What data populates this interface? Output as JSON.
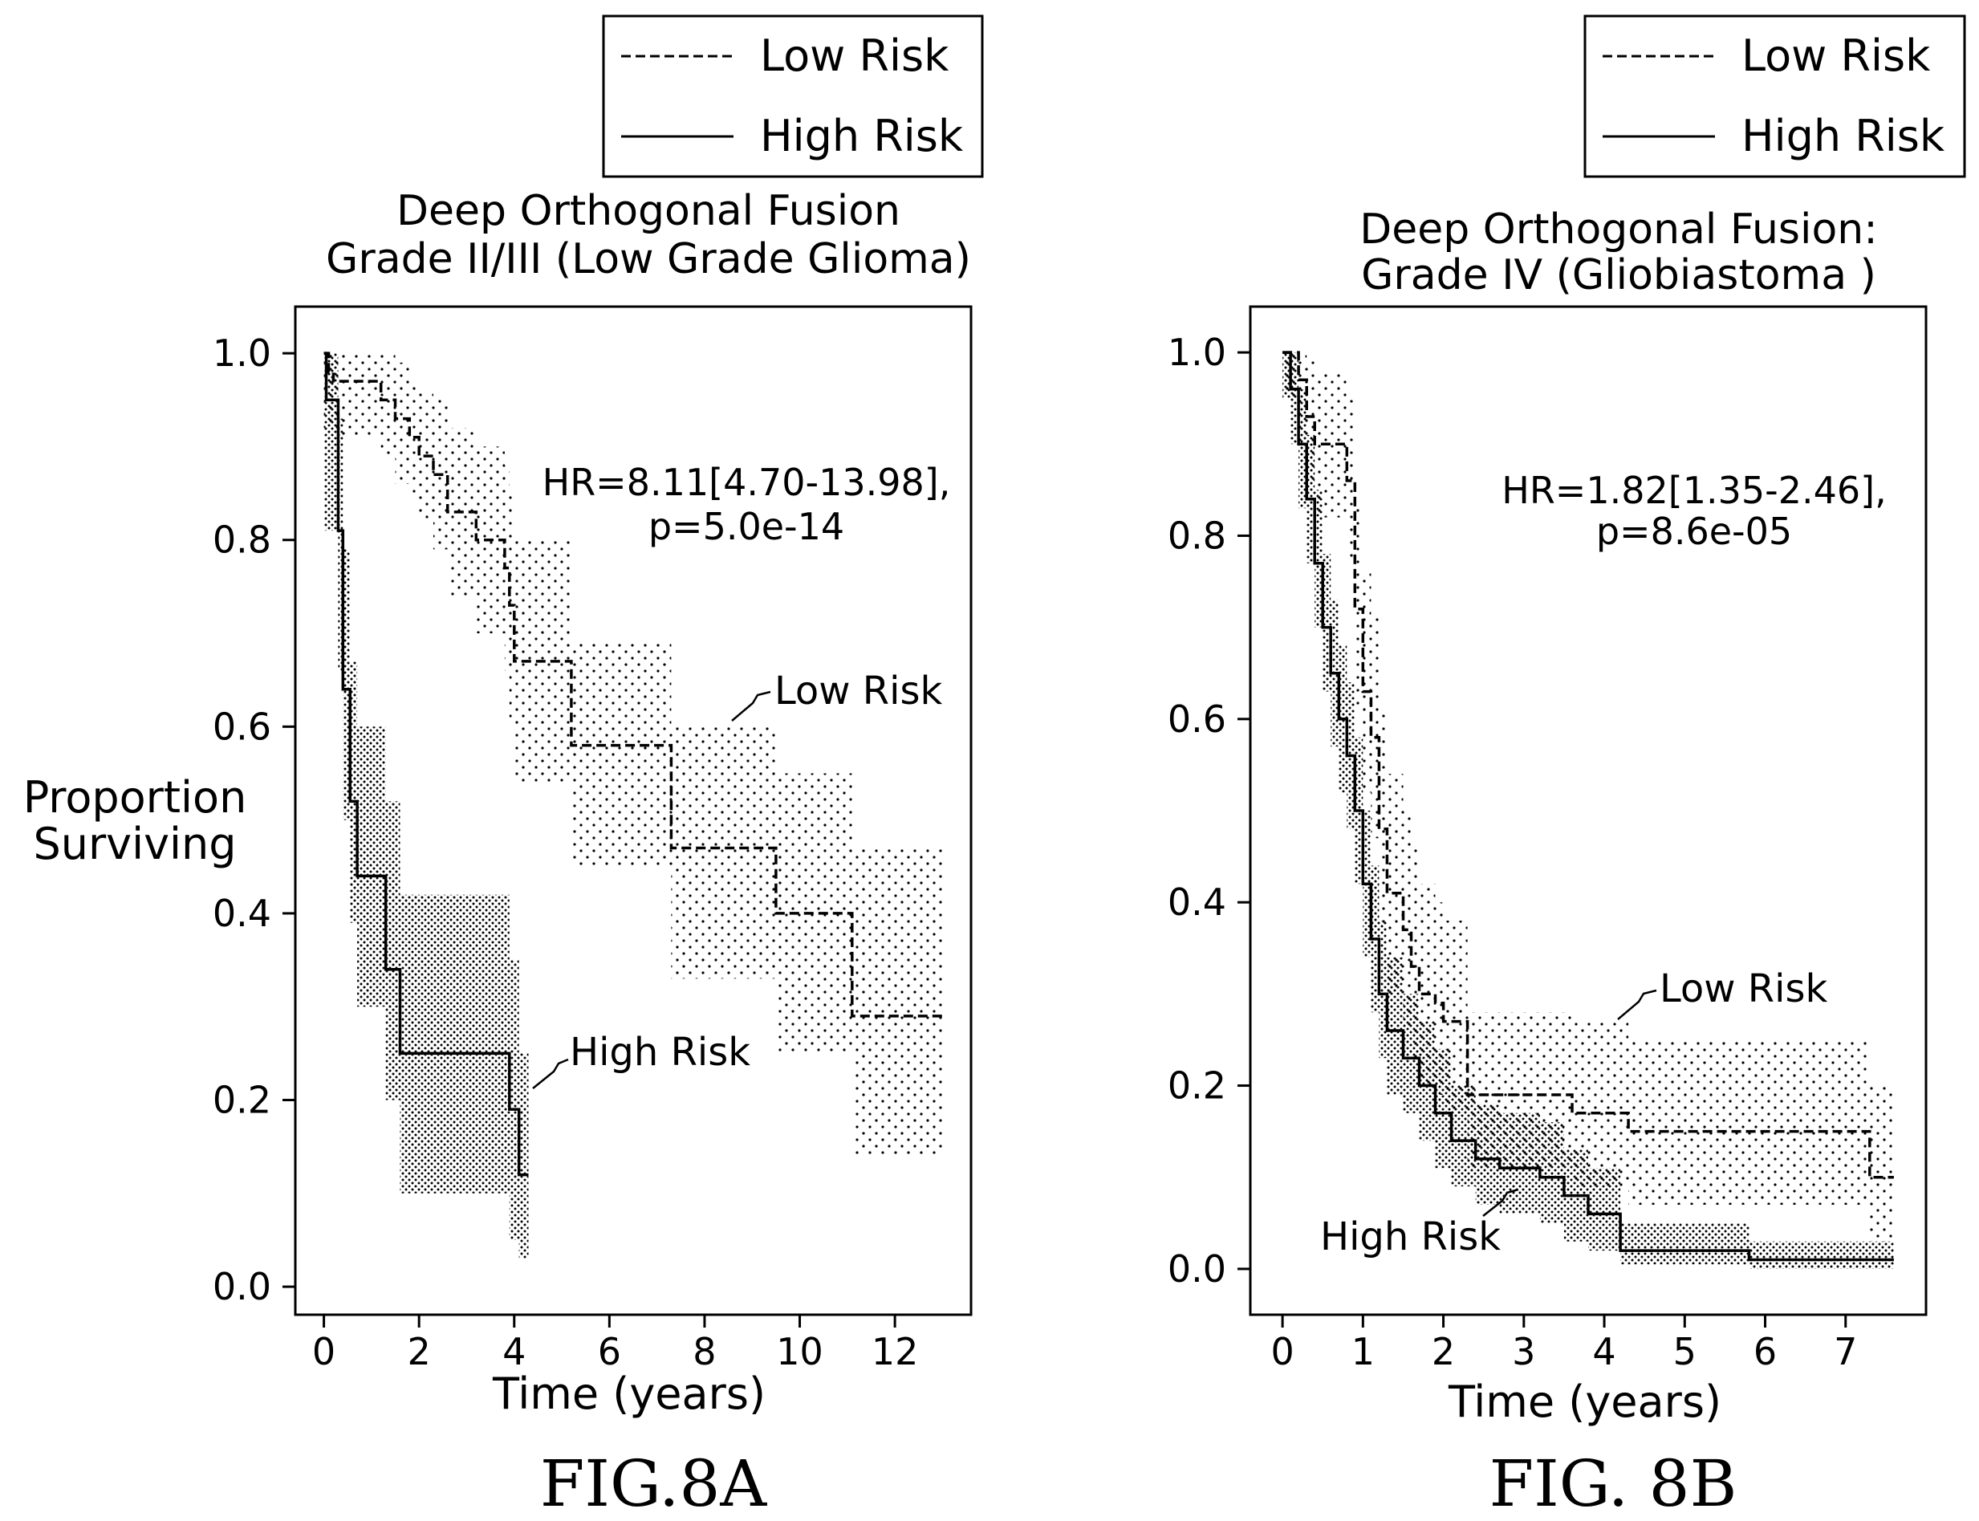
{
  "chart_data": [
    {
      "type": "line",
      "figure_label": "FIG.8A",
      "title_lines": [
        "Deep Orthogonal Fusion",
        "Grade II/III (Low Grade Glioma)"
      ],
      "xlabel": "Time (years)",
      "ylabel_lines": [
        "Proportion",
        "Surviving"
      ],
      "xlim": [
        -0.6,
        13.6
      ],
      "ylim": [
        -0.03,
        1.05
      ],
      "xticks": [
        0,
        2,
        4,
        6,
        8,
        10,
        12
      ],
      "yticks": [
        "0.0",
        "0.2",
        "0.4",
        "0.6",
        "0.8",
        "1.0"
      ],
      "legend": [
        "Low Risk",
        "High Risk"
      ],
      "legend_position": "top-right",
      "annotation": [
        "HR=8.11[4.70-13.98],",
        "p=5.0e-14"
      ],
      "series": [
        {
          "name": "Low Risk",
          "style": "dashed",
          "label": "Low Risk",
          "x": [
            0,
            0.1,
            0.2,
            1.2,
            1.5,
            1.8,
            2.0,
            2.3,
            2.6,
            3.2,
            3.8,
            3.9,
            4.0,
            5.2,
            7.3,
            9.5,
            11.1,
            13.0
          ],
          "y": [
            1.0,
            0.98,
            0.97,
            0.95,
            0.93,
            0.91,
            0.89,
            0.87,
            0.83,
            0.8,
            0.77,
            0.73,
            0.67,
            0.58,
            0.47,
            0.4,
            0.29,
            0.29
          ],
          "ci_lower": [
            0.92,
            0.92,
            0.91,
            0.89,
            0.86,
            0.84,
            0.82,
            0.79,
            0.74,
            0.7,
            0.66,
            0.6,
            0.54,
            0.45,
            0.33,
            0.25,
            0.14,
            0.14
          ],
          "ci_upper": [
            1.0,
            1.0,
            1.0,
            1.0,
            0.99,
            0.97,
            0.96,
            0.95,
            0.92,
            0.9,
            0.88,
            0.85,
            0.8,
            0.69,
            0.6,
            0.55,
            0.47,
            0.47
          ]
        },
        {
          "name": "High Risk",
          "style": "solid",
          "label": "High Risk",
          "x": [
            0,
            0.05,
            0.3,
            0.4,
            0.55,
            0.7,
            1.3,
            1.6,
            3.9,
            4.1,
            4.3
          ],
          "y": [
            1.0,
            0.95,
            0.81,
            0.64,
            0.52,
            0.44,
            0.34,
            0.25,
            0.19,
            0.12,
            0.12
          ],
          "ci_lower": [
            0.81,
            0.81,
            0.66,
            0.5,
            0.39,
            0.3,
            0.2,
            0.1,
            0.05,
            0.03,
            0.03
          ],
          "ci_upper": [
            1.0,
            1.0,
            0.93,
            0.79,
            0.67,
            0.6,
            0.52,
            0.42,
            0.35,
            0.25,
            0.25
          ]
        }
      ]
    },
    {
      "type": "line",
      "figure_label": "FIG. 8B",
      "title_lines": [
        "Deep Orthogonal Fusion:",
        "Grade IV (Gliobiastoma )"
      ],
      "xlabel": "Time (years)",
      "xlim": [
        -0.4,
        8.0
      ],
      "ylim": [
        -0.05,
        1.05
      ],
      "xticks": [
        0,
        1,
        2,
        3,
        4,
        5,
        6,
        7
      ],
      "yticks": [
        "0.0",
        "0.2",
        "0.4",
        "0.6",
        "0.8",
        "1.0"
      ],
      "legend": [
        "Low Risk",
        "High Risk"
      ],
      "legend_position": "top-right",
      "annotation": [
        "HR=1.82[1.35-2.46],",
        "p=8.6e-05"
      ],
      "series": [
        {
          "name": "Low Risk",
          "style": "dashed",
          "label": "Low Risk",
          "x": [
            0,
            0.2,
            0.3,
            0.4,
            0.8,
            0.9,
            1.0,
            1.1,
            1.2,
            1.3,
            1.5,
            1.6,
            1.7,
            1.9,
            2.0,
            2.3,
            3.6,
            4.3,
            7.3,
            7.6
          ],
          "y": [
            1.0,
            0.97,
            0.93,
            0.9,
            0.86,
            0.72,
            0.63,
            0.58,
            0.48,
            0.41,
            0.37,
            0.33,
            0.3,
            0.29,
            0.27,
            0.19,
            0.17,
            0.15,
            0.1,
            0.1
          ],
          "ci_lower": [
            0.95,
            0.9,
            0.86,
            0.82,
            0.77,
            0.61,
            0.52,
            0.47,
            0.37,
            0.3,
            0.26,
            0.23,
            0.2,
            0.19,
            0.17,
            0.11,
            0.09,
            0.07,
            0.03,
            0.03
          ],
          "ci_upper": [
            1.0,
            1.0,
            0.99,
            0.98,
            0.95,
            0.84,
            0.76,
            0.71,
            0.61,
            0.54,
            0.5,
            0.46,
            0.42,
            0.4,
            0.38,
            0.28,
            0.27,
            0.25,
            0.2,
            0.2
          ]
        },
        {
          "name": "High Risk",
          "style": "solid",
          "label": "High Risk",
          "x": [
            0,
            0.1,
            0.2,
            0.3,
            0.4,
            0.5,
            0.6,
            0.7,
            0.8,
            0.9,
            1.0,
            1.1,
            1.2,
            1.3,
            1.5,
            1.7,
            1.9,
            2.1,
            2.4,
            2.7,
            3.2,
            3.5,
            3.8,
            4.2,
            5.0,
            5.8,
            7.6
          ],
          "y": [
            1.0,
            0.96,
            0.9,
            0.84,
            0.77,
            0.7,
            0.65,
            0.6,
            0.56,
            0.5,
            0.42,
            0.36,
            0.3,
            0.26,
            0.23,
            0.2,
            0.17,
            0.14,
            0.12,
            0.11,
            0.1,
            0.08,
            0.06,
            0.02,
            0.02,
            0.01,
            0.01
          ],
          "ci_lower": [
            0.95,
            0.9,
            0.83,
            0.77,
            0.7,
            0.63,
            0.57,
            0.52,
            0.48,
            0.42,
            0.34,
            0.28,
            0.23,
            0.19,
            0.17,
            0.14,
            0.11,
            0.09,
            0.07,
            0.06,
            0.05,
            0.03,
            0.02,
            0.005,
            0.005,
            0.0,
            0.0
          ],
          "ci_upper": [
            1.0,
            1.0,
            0.96,
            0.91,
            0.85,
            0.78,
            0.73,
            0.68,
            0.64,
            0.58,
            0.5,
            0.44,
            0.38,
            0.34,
            0.3,
            0.27,
            0.24,
            0.2,
            0.18,
            0.17,
            0.16,
            0.13,
            0.11,
            0.05,
            0.05,
            0.03,
            0.03
          ]
        }
      ]
    }
  ]
}
